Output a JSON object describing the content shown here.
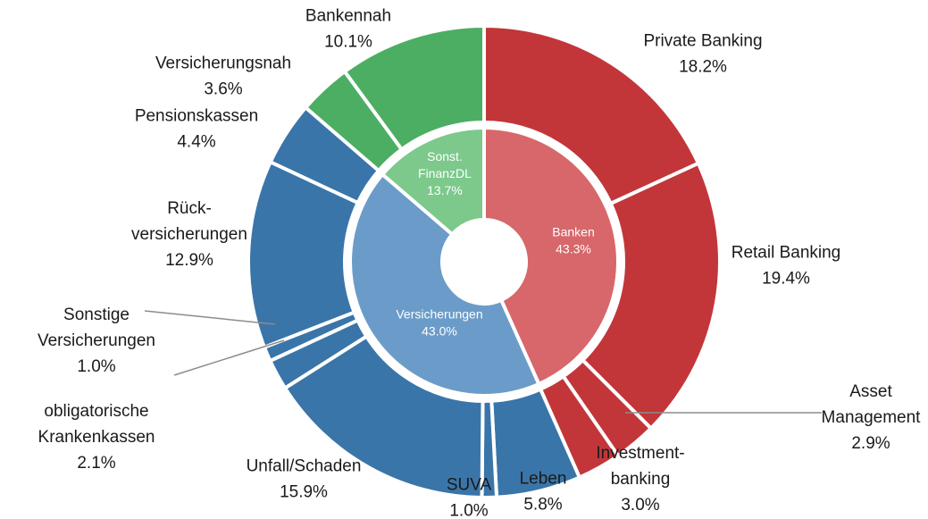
{
  "chart_data": {
    "type": "sunburst",
    "inner_ring": {
      "categories": [
        "Banken",
        "Versicherungen",
        "Sonst.\nFinanzDL"
      ],
      "values": [
        43.3,
        43.0,
        13.7
      ],
      "value_labels": [
        "43.3%",
        "43.0%",
        "13.7%"
      ],
      "colors": [
        "#d7676a",
        "#6b9cc9",
        "#7cc98b"
      ]
    },
    "outer_ring": {
      "categories": [
        "Private Banking",
        "Retail Banking",
        "Asset\nManagement",
        "Investment-\nbanking",
        "Leben",
        "SUVA",
        "Unfall/Schaden",
        "obligatorische\nKrankenkassen",
        "Sonstige\nVersicherungen",
        "Rück-\nversicherungen",
        "Pensionskassen",
        "Versicherungsnah",
        "Bankennah"
      ],
      "values": [
        18.2,
        19.4,
        2.9,
        3.0,
        5.8,
        1.0,
        15.9,
        2.1,
        1.0,
        12.9,
        4.4,
        3.6,
        10.1
      ],
      "value_labels": [
        "18.2%",
        "19.4%",
        "2.9%",
        "3.0%",
        "5.8%",
        "1.0%",
        "15.9%",
        "2.1%",
        "1.0%",
        "12.9%",
        "4.4%",
        "3.6%",
        "10.1%"
      ],
      "colors": [
        "#c2363a",
        "#c2363a",
        "#c2363a",
        "#c2363a",
        "#3a75a9",
        "#3a75a9",
        "#3a75a9",
        "#3a75a9",
        "#3a75a9",
        "#3a75a9",
        "#3a75a9",
        "#4cae63",
        "#4cae63"
      ]
    }
  }
}
